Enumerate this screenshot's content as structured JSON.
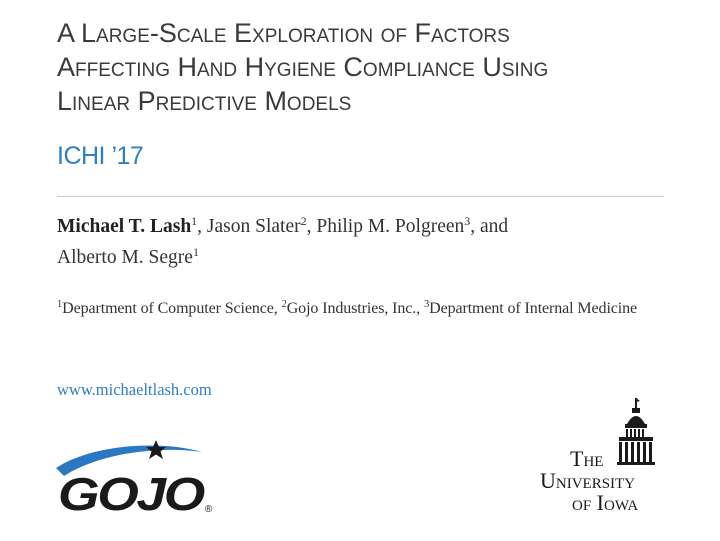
{
  "title": {
    "line1": "A Large-Scale Exploration of Factors",
    "line2": "Affecting Hand Hygiene Compliance Using",
    "line3": "Linear Predictive Models"
  },
  "venue": "ICHI ’17",
  "authors": {
    "a1_name": "Michael T. Lash",
    "a1_sup": "1",
    "sep1": ", ",
    "a2_name": "Jason Slater",
    "a2_sup": "2",
    "sep2": ", ",
    "a3_name": "Philip M. Polgreen",
    "a3_sup": "3",
    "sep3": ", and",
    "a4_name": "Alberto M. Segre",
    "a4_sup": "1"
  },
  "affiliations": {
    "s1": "1",
    "d1": "Department of Computer Science, ",
    "s2": "2",
    "d2": "Gojo Industries, Inc., ",
    "s3": "3",
    "d3": "Department of Internal Medicine"
  },
  "url": "www.michaeltlash.com",
  "logos": {
    "gojo": {
      "text": "GOJO",
      "registered": "®",
      "swoosh_color": "#2a78c2",
      "text_color": "#1a1a1a"
    },
    "uiowa": {
      "line1": "The",
      "line2": "University",
      "line3": "of Iowa"
    }
  },
  "colors": {
    "accent": "#2f7fc1",
    "title": "#3a3a3a",
    "rule": "#c9c9c9"
  }
}
